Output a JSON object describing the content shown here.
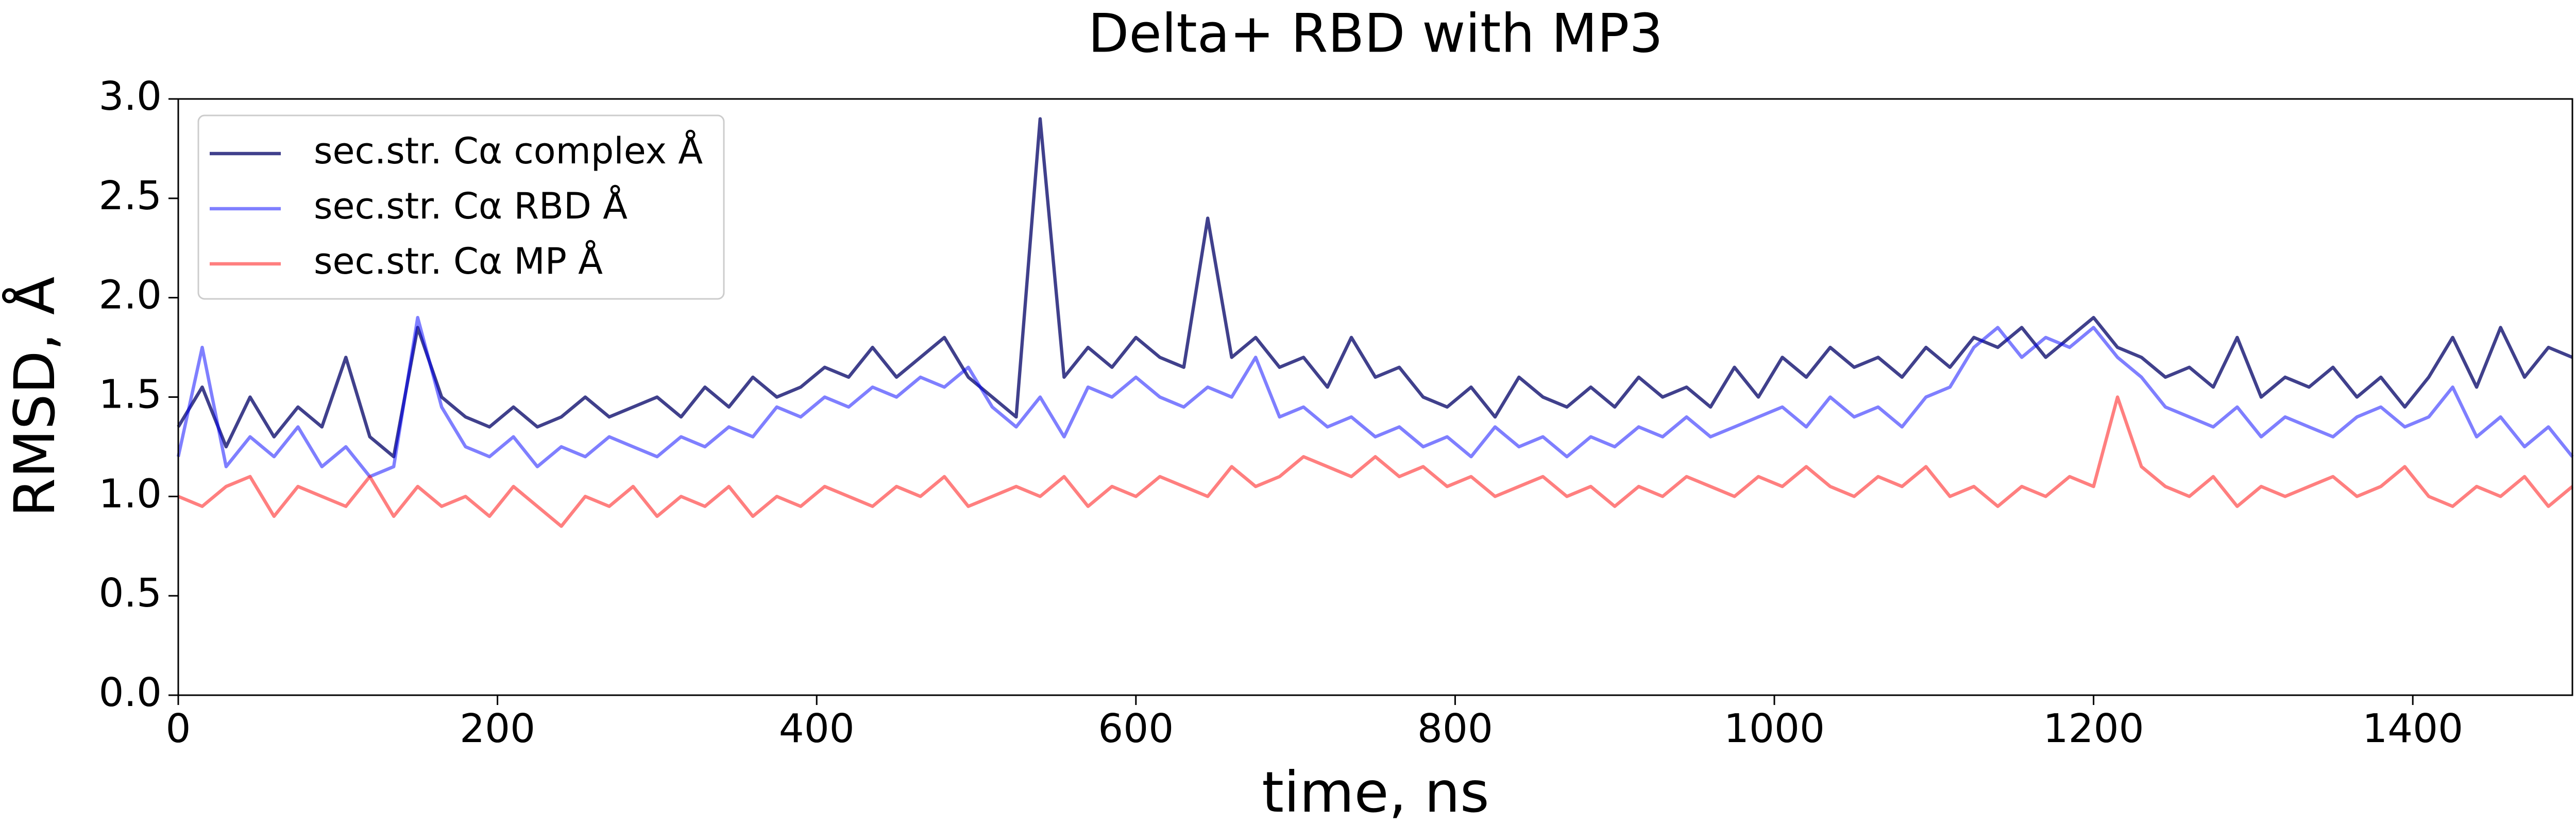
{
  "chart_data": {
    "type": "line",
    "title": "Delta+ RBD with MP3",
    "x_label": "time, ns",
    "y_label": "RMSD, Å",
    "x": [
      0,
      15,
      30,
      45,
      60,
      75,
      90,
      105,
      120,
      135,
      150,
      165,
      180,
      195,
      210,
      225,
      240,
      255,
      270,
      285,
      300,
      315,
      330,
      345,
      360,
      375,
      390,
      405,
      420,
      435,
      450,
      465,
      480,
      495,
      510,
      525,
      540,
      555,
      570,
      585,
      600,
      615,
      630,
      645,
      660,
      675,
      690,
      705,
      720,
      735,
      750,
      765,
      780,
      795,
      810,
      825,
      840,
      855,
      870,
      885,
      900,
      915,
      930,
      945,
      960,
      975,
      990,
      1005,
      1020,
      1035,
      1050,
      1065,
      1080,
      1095,
      1110,
      1125,
      1140,
      1155,
      1170,
      1185,
      1200,
      1215,
      1230,
      1245,
      1260,
      1275,
      1290,
      1305,
      1320,
      1335,
      1350,
      1365,
      1380,
      1395,
      1410,
      1425,
      1440,
      1455,
      1470,
      1485,
      1500
    ],
    "series": [
      {
        "name": "sec.str. Cα complex Å",
        "color": "#000066",
        "values": [
          1.35,
          1.55,
          1.25,
          1.5,
          1.3,
          1.45,
          1.35,
          1.7,
          1.3,
          1.2,
          1.85,
          1.5,
          1.4,
          1.35,
          1.45,
          1.35,
          1.4,
          1.5,
          1.4,
          1.45,
          1.5,
          1.4,
          1.55,
          1.45,
          1.6,
          1.5,
          1.55,
          1.65,
          1.6,
          1.75,
          1.6,
          1.7,
          1.8,
          1.6,
          1.5,
          1.4,
          2.9,
          1.6,
          1.75,
          1.65,
          1.8,
          1.7,
          1.65,
          2.4,
          1.7,
          1.8,
          1.65,
          1.7,
          1.55,
          1.8,
          1.6,
          1.65,
          1.5,
          1.45,
          1.55,
          1.4,
          1.6,
          1.5,
          1.45,
          1.55,
          1.45,
          1.6,
          1.5,
          1.55,
          1.45,
          1.65,
          1.5,
          1.7,
          1.6,
          1.75,
          1.65,
          1.7,
          1.6,
          1.75,
          1.65,
          1.8,
          1.75,
          1.85,
          1.7,
          1.8,
          1.9,
          1.75,
          1.7,
          1.6,
          1.65,
          1.55,
          1.8,
          1.5,
          1.6,
          1.55,
          1.65,
          1.5,
          1.6,
          1.45,
          1.6,
          1.8,
          1.55,
          1.85,
          1.6,
          1.75,
          1.7
        ]
      },
      {
        "name": "sec.str. Cα RBD Å",
        "color": "#0000ff",
        "values": [
          1.2,
          1.75,
          1.15,
          1.3,
          1.2,
          1.35,
          1.15,
          1.25,
          1.1,
          1.15,
          1.9,
          1.45,
          1.25,
          1.2,
          1.3,
          1.15,
          1.25,
          1.2,
          1.3,
          1.25,
          1.2,
          1.3,
          1.25,
          1.35,
          1.3,
          1.45,
          1.4,
          1.5,
          1.45,
          1.55,
          1.5,
          1.6,
          1.55,
          1.65,
          1.45,
          1.35,
          1.5,
          1.3,
          1.55,
          1.5,
          1.6,
          1.5,
          1.45,
          1.55,
          1.5,
          1.7,
          1.4,
          1.45,
          1.35,
          1.4,
          1.3,
          1.35,
          1.25,
          1.3,
          1.2,
          1.35,
          1.25,
          1.3,
          1.2,
          1.3,
          1.25,
          1.35,
          1.3,
          1.4,
          1.3,
          1.35,
          1.4,
          1.45,
          1.35,
          1.5,
          1.4,
          1.45,
          1.35,
          1.5,
          1.55,
          1.75,
          1.85,
          1.7,
          1.8,
          1.75,
          1.85,
          1.7,
          1.6,
          1.45,
          1.4,
          1.35,
          1.45,
          1.3,
          1.4,
          1.35,
          1.3,
          1.4,
          1.45,
          1.35,
          1.4,
          1.55,
          1.3,
          1.4,
          1.25,
          1.35,
          1.2
        ]
      },
      {
        "name": "sec.str. Cα MP Å",
        "color": "#ff0000",
        "values": [
          1.0,
          0.95,
          1.05,
          1.1,
          0.9,
          1.05,
          1.0,
          0.95,
          1.1,
          0.9,
          1.05,
          0.95,
          1.0,
          0.9,
          1.05,
          0.95,
          0.85,
          1.0,
          0.95,
          1.05,
          0.9,
          1.0,
          0.95,
          1.05,
          0.9,
          1.0,
          0.95,
          1.05,
          1.0,
          0.95,
          1.05,
          1.0,
          1.1,
          0.95,
          1.0,
          1.05,
          1.0,
          1.1,
          0.95,
          1.05,
          1.0,
          1.1,
          1.05,
          1.0,
          1.15,
          1.05,
          1.1,
          1.2,
          1.15,
          1.1,
          1.2,
          1.1,
          1.15,
          1.05,
          1.1,
          1.0,
          1.05,
          1.1,
          1.0,
          1.05,
          0.95,
          1.05,
          1.0,
          1.1,
          1.05,
          1.0,
          1.1,
          1.05,
          1.15,
          1.05,
          1.0,
          1.1,
          1.05,
          1.15,
          1.0,
          1.05,
          0.95,
          1.05,
          1.0,
          1.1,
          1.05,
          1.5,
          1.15,
          1.05,
          1.0,
          1.1,
          0.95,
          1.05,
          1.0,
          1.05,
          1.1,
          1.0,
          1.05,
          1.15,
          1.0,
          0.95,
          1.05,
          1.0,
          1.1,
          0.95,
          1.05
        ]
      }
    ],
    "xlim": [
      0,
      1500
    ],
    "xticks": [
      0,
      200,
      400,
      600,
      800,
      1000,
      1200,
      1400
    ],
    "ylim": [
      0,
      3
    ],
    "yticks": [
      {
        "value": 0,
        "label": "0.0"
      },
      0.5,
      {
        "value": 1,
        "label": "1.0"
      },
      1.5,
      {
        "value": 2,
        "label": "2.0"
      },
      2.5,
      {
        "value": 3,
        "label": "3.0"
      }
    ],
    "legend": "upper-left",
    "grid": false
  }
}
